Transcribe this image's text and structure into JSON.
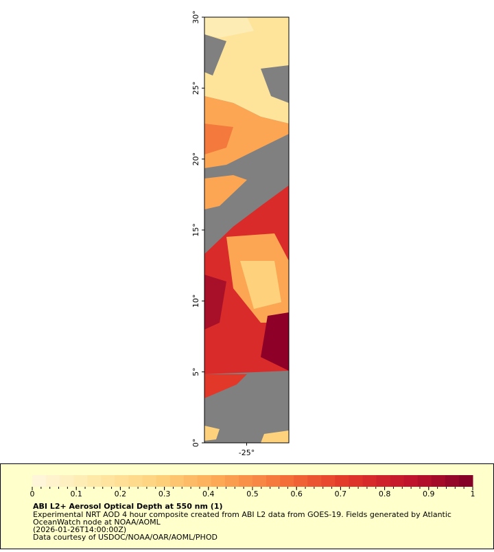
{
  "map": {
    "xlim": [
      -28,
      -22
    ],
    "ylim": [
      0,
      30
    ],
    "xticks": [
      {
        "value": -25,
        "label": "-25°"
      }
    ],
    "yticks": [
      {
        "value": 0,
        "label": "0°"
      },
      {
        "value": 5,
        "label": "5°"
      },
      {
        "value": 10,
        "label": "10°"
      },
      {
        "value": 15,
        "label": "15°"
      },
      {
        "value": 20,
        "label": "20°"
      },
      {
        "value": 25,
        "label": "25°"
      },
      {
        "value": 30,
        "label": "30°"
      }
    ],
    "land_color": "#808080"
  },
  "colorbar": {
    "title": "ABI L2+ Aerosol Optical Depth at 550 nm (1)",
    "lim": [
      0,
      1
    ],
    "ticks": [
      0,
      0.1,
      0.2,
      0.3,
      0.4,
      0.5,
      0.6,
      0.7,
      0.8,
      0.9,
      1
    ],
    "colors": [
      "#fff8e0",
      "#fee9a8",
      "#fed27c",
      "#fca653",
      "#f5713a",
      "#e2382a",
      "#c0142b",
      "#800026"
    ]
  },
  "notes": [
    "Experimental NRT AOD 4 hour composite created from ABI L2 data from GOES-19. Fields generated by Atlantic",
    "OceanWatch node at NOAA/AOML",
    "(2026-01-26T14:00:00Z)",
    "Data courtesy of USDOC/NOAA/OAR/AOML/PHOD"
  ]
}
